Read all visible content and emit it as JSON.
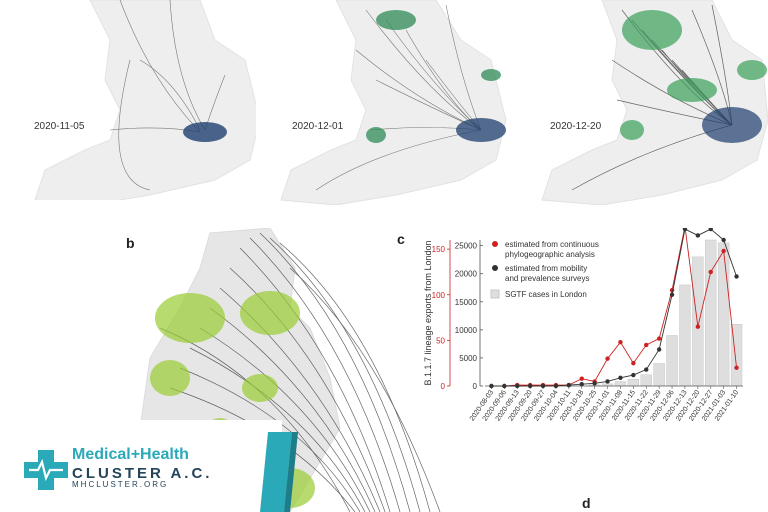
{
  "maps": {
    "dates": [
      "2020-11-05",
      "2020-12-01",
      "2020-12-20"
    ]
  },
  "panels": {
    "b": "b",
    "c": "c",
    "d": "d"
  },
  "logo": {
    "line1": "Medical+Health",
    "line2": "CLUSTER A.C.",
    "line3": "MHCLUSTER.ORG"
  },
  "chart_data": {
    "type": "line",
    "ylabel": "B.1.1.7 lineage exports from London",
    "categories": [
      "2020-08-03",
      "2020-09-06",
      "2020-09-13",
      "2020-09-20",
      "2020-09-27",
      "2020-10-04",
      "2020-10-11",
      "2020-10-18",
      "2020-10-25",
      "2020-11-01",
      "2020-11-08",
      "2020-11-15",
      "2020-11-22",
      "2020-11-29",
      "2020-12-06",
      "2020-12-13",
      "2020-12-20",
      "2020-12-27",
      "2021-01-03",
      "2021-01-10"
    ],
    "ylim_left": [
      0,
      160
    ],
    "left_ticks": [
      0,
      50,
      100,
      150
    ],
    "ylim_right": [
      0,
      26000
    ],
    "right_ticks": [
      0,
      5000,
      10000,
      15000,
      20000,
      25000
    ],
    "series": [
      {
        "name": "estimated from continuous phylogeographic analysis",
        "color": "#cc2222",
        "axis": "left",
        "values": [
          0,
          0,
          1,
          1,
          1,
          1,
          1,
          8,
          5,
          30,
          48,
          25,
          45,
          52,
          105,
          175,
          65,
          125,
          148,
          20
        ]
      },
      {
        "name": "estimated from mobility and prevalence surveys",
        "color": "#333333",
        "axis": "left",
        "values": [
          0,
          0,
          0,
          0,
          0,
          0,
          1,
          2,
          3,
          5,
          9,
          12,
          18,
          40,
          100,
          172,
          165,
          172,
          160,
          120
        ]
      },
      {
        "name": "SGTF cases in London",
        "color": "#dddddd",
        "axis": "right",
        "kind": "bar",
        "values": [
          0,
          0,
          0,
          0,
          0,
          0,
          0,
          0,
          200,
          400,
          800,
          1200,
          2000,
          4000,
          9000,
          18000,
          23000,
          26000,
          25500,
          11000
        ]
      }
    ],
    "legend_position": "top-left"
  }
}
